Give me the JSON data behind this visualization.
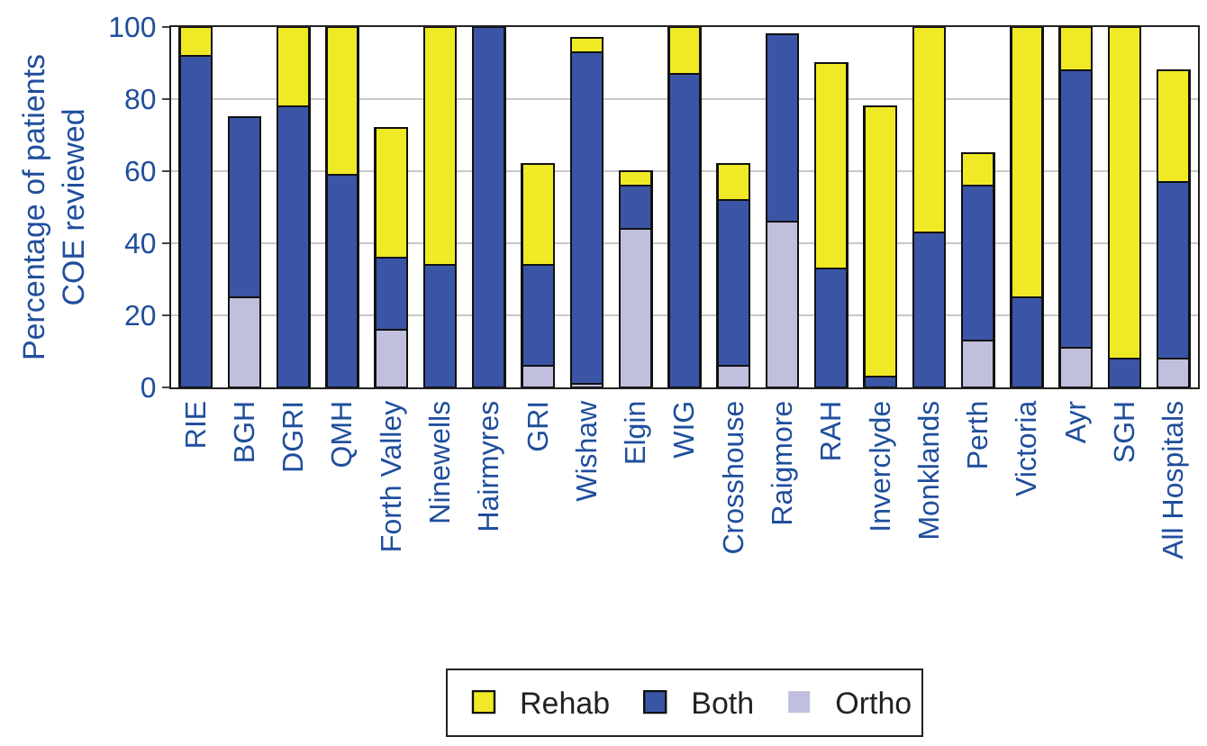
{
  "chart_data": {
    "type": "bar",
    "stacked": true,
    "ylabel": "Percentage of patients\nCOE reviewed",
    "categories": [
      "RIE",
      "BGH",
      "DGRI",
      "QMH",
      "Forth Valley",
      "Ninewells",
      "Hairmyres",
      "GRI",
      "Wishaw",
      "Elgin",
      "WIG",
      "Crosshouse",
      "Raigmore",
      "RAH",
      "Inverclyde",
      "Monklands",
      "Perth",
      "Victoria",
      "Ayr",
      "SGH",
      "All Hospitals"
    ],
    "series": [
      {
        "name": "Ortho",
        "color": "#c0bfdd",
        "values": [
          0,
          25,
          0,
          0,
          16,
          0,
          0,
          6,
          1,
          44,
          0,
          6,
          46,
          0,
          0,
          0,
          13,
          0,
          11,
          0,
          8
        ]
      },
      {
        "name": "Both",
        "color": "#3a55a5",
        "values": [
          92,
          50,
          78,
          59,
          20,
          34,
          100,
          28,
          92,
          12,
          87,
          46,
          52,
          33,
          3,
          43,
          43,
          25,
          77,
          8,
          49
        ]
      },
      {
        "name": "Rehab",
        "color": "#f0e925",
        "values": [
          8,
          0,
          22,
          41,
          36,
          66,
          0,
          28,
          4,
          4,
          13,
          10,
          0,
          57,
          75,
          57,
          9,
          75,
          12,
          92,
          31
        ]
      }
    ],
    "ylim": [
      0,
      100
    ],
    "yticks": [
      0,
      20,
      40,
      60,
      80,
      100
    ],
    "grid": "y",
    "legend": "bottom"
  }
}
